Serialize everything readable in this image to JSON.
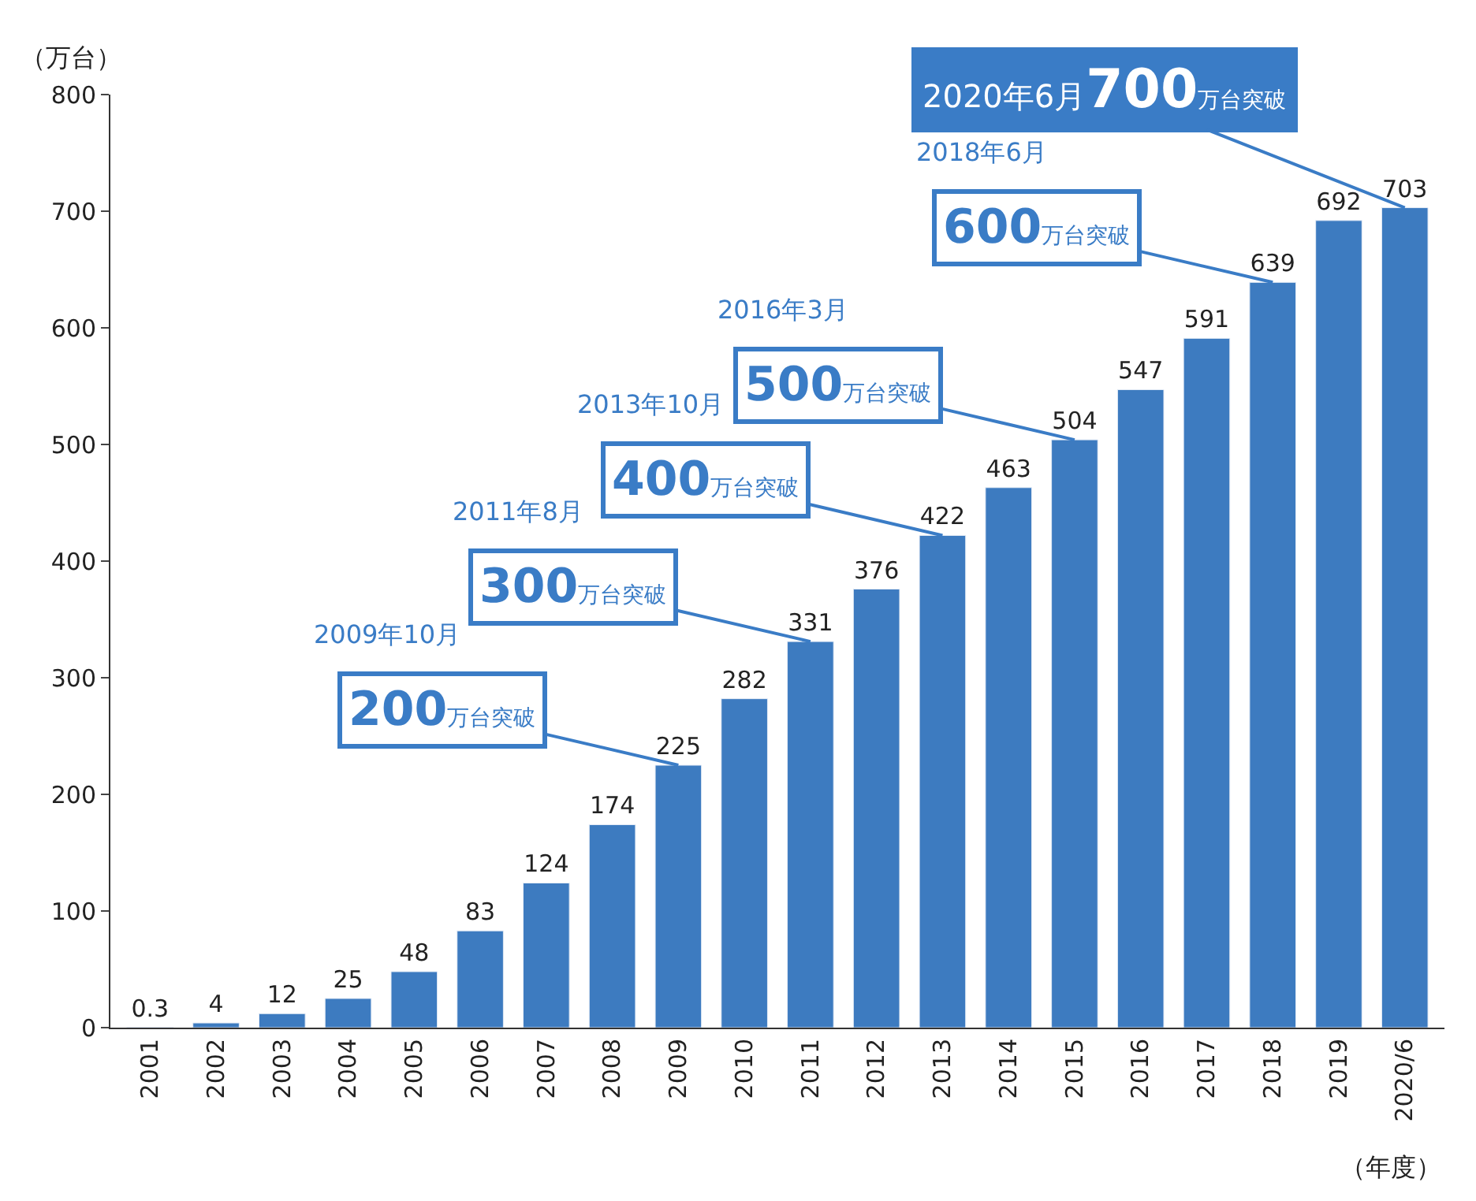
{
  "chart_data": {
    "type": "bar",
    "categories": [
      "2001",
      "2002",
      "2003",
      "2004",
      "2005",
      "2006",
      "2007",
      "2008",
      "2009",
      "2010",
      "2011",
      "2012",
      "2013",
      "2014",
      "2015",
      "2016",
      "2017",
      "2018",
      "2019",
      "2020/6"
    ],
    "values": [
      0.3,
      4,
      12,
      25,
      48,
      83,
      124,
      174,
      225,
      282,
      331,
      376,
      422,
      463,
      504,
      547,
      591,
      639,
      692,
      703
    ],
    "color": "#3d7bc0",
    "data_labels": true,
    "ylabel": "（万台）",
    "xlabel": "（年度）",
    "ylim": [
      0,
      800
    ],
    "yticks": [
      0,
      100,
      200,
      300,
      400,
      500,
      600,
      700,
      800
    ],
    "annotations": [
      "2009年10月",
      {
        "text": "200万台突破",
        "x": "2009",
        "y": 225
      },
      "2011年8月",
      {
        "text": "300万台突破",
        "x": "2011",
        "y": 331
      },
      "2013年10月",
      {
        "text": "400万台突破",
        "x": "2013",
        "y": 422
      },
      "2016年3月",
      {
        "text": "500万台突破",
        "x": "2015",
        "y": 504
      },
      "2018年6月",
      {
        "text": "600万台突破",
        "x": "2018",
        "y": 639
      },
      {
        "text": "2020年6月700万台突破",
        "x": "2020/6",
        "y": 703
      }
    ]
  }
}
